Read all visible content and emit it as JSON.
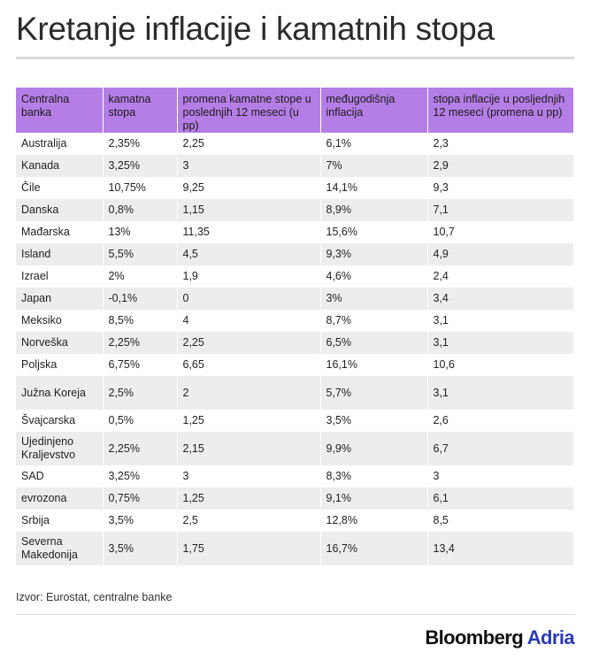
{
  "title": "Kretanje inflacije i kamatnih stopa",
  "table": {
    "headers": [
      "Centralna banka",
      "kamatna stopa",
      "promena kamatne stope u poslednjih 12 meseci (u pp)",
      "međugodišnja inflacija",
      "stopa inflacije u posljednjih 12 meseci (promena u pp)"
    ],
    "rows": [
      [
        "Australija",
        "2,35%",
        "2,25",
        "6,1%",
        "2,3"
      ],
      [
        "Kanada",
        "3,25%",
        "3",
        "7%",
        "2,9"
      ],
      [
        "Čile",
        "10,75%",
        "9,25",
        "14,1%",
        "9,3"
      ],
      [
        "Danska",
        "0,8%",
        "1,15",
        "8,9%",
        "7,1"
      ],
      [
        "Mađarska",
        "13%",
        "11,35",
        "15,6%",
        "10,7"
      ],
      [
        "Island",
        "5,5%",
        "4,5",
        "9,3%",
        "4,9"
      ],
      [
        "Izrael",
        "2%",
        "1,9",
        "4,6%",
        "2,4"
      ],
      [
        "Japan",
        "-0,1%",
        "0",
        "3%",
        "3,4"
      ],
      [
        "Meksiko",
        "8,5%",
        "4",
        "8,7%",
        "3,1"
      ],
      [
        "Norveška",
        "2,25%",
        "2,25",
        "6,5%",
        "3,1"
      ],
      [
        "Poljska",
        "6,75%",
        "6,65",
        "16,1%",
        "10,6"
      ],
      [
        "Južna Koreja",
        "2,5%",
        "2",
        "5,7%",
        "3,1"
      ],
      [
        "Švajcarska",
        "0,5%",
        "1,25",
        "3,5%",
        "2,6"
      ],
      [
        "Ujedinjeno Kraljevstvo",
        "2,25%",
        "2,15",
        "9,9%",
        "6,7"
      ],
      [
        "SAD",
        "3,25%",
        "3",
        "8,3%",
        "3"
      ],
      [
        "evrozona",
        "0,75%",
        "1,25",
        "9,1%",
        "6,1"
      ],
      [
        "Srbija",
        "3,5%",
        "2,5",
        "12,8%",
        "8,5"
      ],
      [
        "Severna Makedonija",
        "3,5%",
        "1,75",
        "16,7%",
        "13,4"
      ]
    ]
  },
  "source": "Izvor: Eurostat, centralne banke",
  "logo": {
    "brand": "Bloomberg",
    "region": "Adria"
  }
}
